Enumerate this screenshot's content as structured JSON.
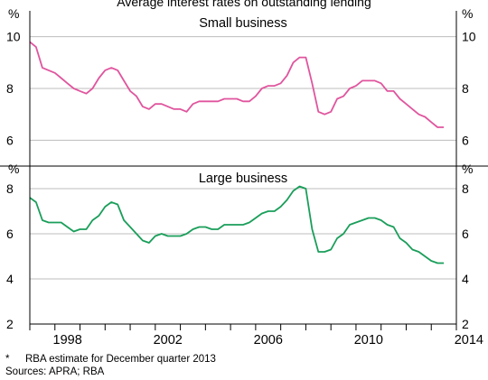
{
  "header": {
    "top_title": "Average interest rates on outstanding lending"
  },
  "footnotes": {
    "star": "*",
    "estimate": "RBA estimate for December quarter 2013",
    "sources": "Sources: APRA; RBA"
  },
  "chart_data": [
    {
      "type": "line",
      "title": "Small business",
      "unit_left": "%",
      "unit_right": "%",
      "ylim": [
        5,
        11
      ],
      "yticks": [
        6,
        8,
        10
      ],
      "xlim": [
        1997.0,
        2014.0
      ],
      "xticks": [
        1998,
        2002,
        2006,
        2010,
        2014
      ],
      "color": "#e0559e",
      "series": [
        {
          "x": [
            1997.0,
            1997.25,
            1997.5,
            1997.75,
            1998.0,
            1998.25,
            1998.5,
            1998.75,
            1999.0,
            1999.25,
            1999.5,
            1999.75,
            2000.0,
            2000.25,
            2000.5,
            2000.75,
            2001.0,
            2001.25,
            2001.5,
            2001.75,
            2002.0,
            2002.25,
            2002.5,
            2002.75,
            2003.0,
            2003.25,
            2003.5,
            2003.75,
            2004.0,
            2004.25,
            2004.5,
            2004.75,
            2005.0,
            2005.25,
            2005.5,
            2005.75,
            2006.0,
            2006.25,
            2006.5,
            2006.75,
            2007.0,
            2007.25,
            2007.5,
            2007.75,
            2008.0,
            2008.25,
            2008.5,
            2008.75,
            2009.0,
            2009.25,
            2009.5,
            2009.75,
            2010.0,
            2010.25,
            2010.5,
            2010.75,
            2011.0,
            2011.25,
            2011.5,
            2011.75,
            2012.0,
            2012.25,
            2012.5,
            2012.75,
            2013.0,
            2013.25,
            2013.5
          ],
          "y": [
            9.8,
            9.6,
            8.8,
            8.7,
            8.6,
            8.4,
            8.2,
            8.0,
            7.9,
            7.8,
            8.0,
            8.4,
            8.7,
            8.8,
            8.7,
            8.3,
            7.9,
            7.7,
            7.3,
            7.2,
            7.4,
            7.4,
            7.3,
            7.2,
            7.2,
            7.1,
            7.4,
            7.5,
            7.5,
            7.5,
            7.5,
            7.6,
            7.6,
            7.6,
            7.5,
            7.5,
            7.7,
            8.0,
            8.1,
            8.1,
            8.2,
            8.5,
            9.0,
            9.2,
            9.2,
            8.2,
            7.1,
            7.0,
            7.1,
            7.6,
            7.7,
            8.0,
            8.1,
            8.3,
            8.3,
            8.3,
            8.2,
            7.9,
            7.9,
            7.6,
            7.4,
            7.2,
            7.0,
            6.9,
            6.7,
            6.5,
            6.5
          ]
        }
      ]
    },
    {
      "type": "line",
      "title": "Large business",
      "unit_left": "%",
      "unit_right": "%",
      "ylim": [
        2,
        9
      ],
      "yticks": [
        2,
        4,
        6,
        8
      ],
      "xlim": [
        1997.0,
        2014.0
      ],
      "xticks": [
        1998,
        2002,
        2006,
        2010,
        2014
      ],
      "color": "#1a9e5a",
      "series": [
        {
          "x": [
            1997.0,
            1997.25,
            1997.5,
            1997.75,
            1998.0,
            1998.25,
            1998.5,
            1998.75,
            1999.0,
            1999.25,
            1999.5,
            1999.75,
            2000.0,
            2000.25,
            2000.5,
            2000.75,
            2001.0,
            2001.25,
            2001.5,
            2001.75,
            2002.0,
            2002.25,
            2002.5,
            2002.75,
            2003.0,
            2003.25,
            2003.5,
            2003.75,
            2004.0,
            2004.25,
            2004.5,
            2004.75,
            2005.0,
            2005.25,
            2005.5,
            2005.75,
            2006.0,
            2006.25,
            2006.5,
            2006.75,
            2007.0,
            2007.25,
            2007.5,
            2007.75,
            2008.0,
            2008.25,
            2008.5,
            2008.75,
            2009.0,
            2009.25,
            2009.5,
            2009.75,
            2010.0,
            2010.25,
            2010.5,
            2010.75,
            2011.0,
            2011.25,
            2011.5,
            2011.75,
            2012.0,
            2012.25,
            2012.5,
            2012.75,
            2013.0,
            2013.25,
            2013.5
          ],
          "y": [
            7.6,
            7.4,
            6.6,
            6.5,
            6.5,
            6.5,
            6.3,
            6.1,
            6.2,
            6.2,
            6.6,
            6.8,
            7.2,
            7.4,
            7.3,
            6.6,
            6.3,
            6.0,
            5.7,
            5.6,
            5.9,
            6.0,
            5.9,
            5.9,
            5.9,
            6.0,
            6.2,
            6.3,
            6.3,
            6.2,
            6.2,
            6.4,
            6.4,
            6.4,
            6.4,
            6.5,
            6.7,
            6.9,
            7.0,
            7.0,
            7.2,
            7.5,
            7.9,
            8.1,
            8.0,
            6.2,
            5.2,
            5.2,
            5.3,
            5.8,
            6.0,
            6.4,
            6.5,
            6.6,
            6.7,
            6.7,
            6.6,
            6.4,
            6.3,
            5.8,
            5.6,
            5.3,
            5.2,
            5.0,
            4.8,
            4.7,
            4.7
          ]
        }
      ]
    }
  ]
}
